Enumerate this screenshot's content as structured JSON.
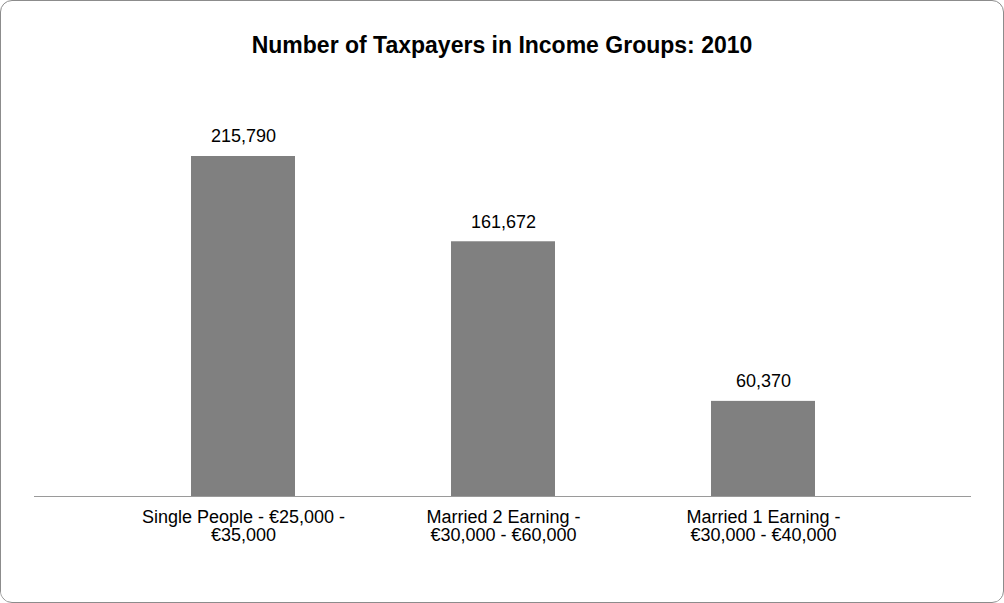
{
  "chart_data": {
    "type": "bar",
    "title": "Number of Taxpayers in Income Groups: 2010",
    "categories": [
      "Single People - €25,000 - €35,000",
      "Married 2 Earning - €30,000 - €60,000",
      "Married 1 Earning - €30,000 - €40,000"
    ],
    "values": [
      215790,
      161672,
      60370
    ],
    "value_labels": [
      "215,790",
      "161,672",
      "60,370"
    ],
    "color": "#808080",
    "data_labels": true,
    "tick_labels": "x",
    "grid": false
  }
}
